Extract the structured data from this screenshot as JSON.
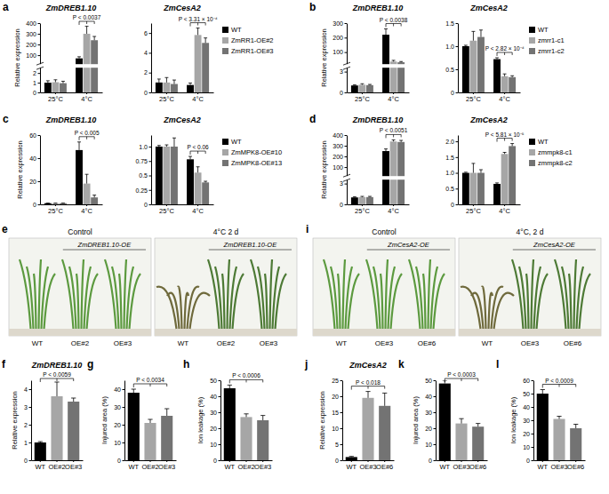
{
  "chart_data": [
    {
      "type": "bar",
      "panel": "a",
      "title": "ZmDREB1.10",
      "ylabel": "Relative expression",
      "categories": [
        "25°C",
        "4°C"
      ],
      "series": [
        {
          "name": "WT",
          "color": "#000000",
          "values": [
            1,
            70
          ],
          "errors": [
            0.2,
            15
          ]
        },
        {
          "name": "ZmRR1-OE#2",
          "color": "#a6a6a6",
          "values": [
            1.05,
            300
          ],
          "errors": [
            0.25,
            70
          ]
        },
        {
          "name": "ZmRR1-OE#3",
          "color": "#737373",
          "values": [
            0.95,
            240
          ],
          "errors": [
            0.2,
            35
          ]
        }
      ],
      "ylim": [
        0,
        400
      ],
      "ybreak": [
        2.5,
        20
      ],
      "yticks": [
        0,
        1,
        2,
        100,
        200,
        300,
        400
      ],
      "annotations": [
        {
          "text": "P < 0.0037"
        }
      ]
    },
    {
      "type": "bar",
      "title": "ZmCesA2",
      "categories": [
        "25°C",
        "4°C"
      ],
      "series": [
        {
          "name": "WT",
          "color": "#000000",
          "values": [
            1,
            0.75
          ],
          "errors": [
            0.35,
            0.2
          ]
        },
        {
          "name": "ZmRR1-OE#2",
          "color": "#a6a6a6",
          "values": [
            1,
            5.8
          ],
          "errors": [
            0.5,
            0.7
          ]
        },
        {
          "name": "ZmRR1-OE#3",
          "color": "#737373",
          "values": [
            0.85,
            5.0
          ],
          "errors": [
            0.4,
            0.5
          ]
        }
      ],
      "ylim": [
        0,
        7
      ],
      "yticks": [
        0,
        2,
        4,
        6
      ],
      "legend": "right",
      "annotations": [
        {
          "text": "P < 3.31 × 10⁻⁴"
        }
      ]
    },
    {
      "type": "bar",
      "panel": "b",
      "title": "ZmDREB1.10",
      "ylabel": "Relative expression",
      "categories": [
        "25°C",
        "4°C"
      ],
      "series": [
        {
          "name": "WT",
          "color": "#000000",
          "values": [
            1,
            220
          ],
          "errors": [
            0.1,
            40
          ]
        },
        {
          "name": "zmrr1-c1",
          "color": "#a6a6a6",
          "values": [
            1.1,
            35
          ],
          "errors": [
            0.15,
            8
          ]
        },
        {
          "name": "zmrr1-c2",
          "color": "#737373",
          "values": [
            1.05,
            30
          ],
          "errors": [
            0.1,
            5
          ]
        }
      ],
      "ylim": [
        0,
        300
      ],
      "ybreak": [
        3.5,
        20
      ],
      "yticks": [
        0,
        3,
        100,
        200,
        300
      ],
      "annotations": [
        {
          "text": "P < 0.0038"
        }
      ]
    },
    {
      "type": "bar",
      "title": "ZmCesA2",
      "categories": [
        "25°C",
        "4°C"
      ],
      "series": [
        {
          "name": "WT",
          "color": "#000000",
          "values": [
            1,
            0.72
          ],
          "errors": [
            0.02,
            0.03
          ]
        },
        {
          "name": "zmrr1-c1",
          "color": "#a6a6a6",
          "values": [
            1.12,
            0.35
          ],
          "errors": [
            0.2,
            0.05
          ]
        },
        {
          "name": "zmrr1-c2",
          "color": "#737373",
          "values": [
            1.2,
            0.33
          ],
          "errors": [
            0.15,
            0.03
          ]
        }
      ],
      "ylim": [
        0,
        1.5
      ],
      "yticks": [
        0,
        0.5,
        {
          "value": 1,
          "label": "1.0"
        },
        1.5
      ],
      "legend": "right",
      "annotations": [
        {
          "text": "P < 2.82 × 10⁻⁴"
        }
      ]
    },
    {
      "type": "bar",
      "panel": "c",
      "title": "ZmDREB1.10",
      "ylabel": "Relative expression",
      "categories": [
        "25°C",
        "4°C"
      ],
      "series": [
        {
          "name": "WT",
          "color": "#000000",
          "values": [
            1,
            47
          ],
          "errors": [
            0.1,
            7
          ]
        },
        {
          "name": "ZmMPK8-OE#10",
          "color": "#a6a6a6",
          "values": [
            1,
            18
          ],
          "errors": [
            0.1,
            8
          ]
        },
        {
          "name": "ZmMPK8-OE#13",
          "color": "#737373",
          "values": [
            1,
            6
          ],
          "errors": [
            0.1,
            2
          ]
        }
      ],
      "ylim": [
        0,
        60
      ],
      "yticks": [
        0,
        20,
        40,
        60
      ],
      "annotations": [
        {
          "text": "P < 0.005"
        }
      ]
    },
    {
      "type": "bar",
      "title": "ZmCesA2",
      "categories": [
        "25°C",
        "4°C"
      ],
      "series": [
        {
          "name": "WT",
          "color": "#000000",
          "values": [
            1,
            0.78
          ],
          "errors": [
            0.02,
            0.05
          ]
        },
        {
          "name": "ZmMPK8-OE#10",
          "color": "#a6a6a6",
          "values": [
            1,
            0.55
          ],
          "errors": [
            0.03,
            0.1
          ]
        },
        {
          "name": "ZmMPK8-OE#13",
          "color": "#737373",
          "values": [
            1,
            0.38
          ],
          "errors": [
            0.15,
            0.02
          ]
        }
      ],
      "ylim": [
        0,
        1.2
      ],
      "yticks": [
        0,
        0.25,
        0.5,
        0.75,
        {
          "value": 1,
          "label": "1.0"
        }
      ],
      "legend": "right",
      "annotations": [
        {
          "text": "P < 0.06"
        }
      ]
    },
    {
      "type": "bar",
      "panel": "d",
      "title": "ZmDREB1.10",
      "ylabel": "Relative expression",
      "categories": [
        "25°C",
        "4°C"
      ],
      "series": [
        {
          "name": "WT",
          "color": "#000000",
          "values": [
            1,
            250
          ],
          "errors": [
            0.1,
            20
          ]
        },
        {
          "name": "zmmpk8-c1",
          "color": "#a6a6a6",
          "values": [
            1.05,
            340
          ],
          "errors": [
            0.1,
            15
          ]
        },
        {
          "name": "zmmpk8-c2",
          "color": "#737373",
          "values": [
            1.05,
            335
          ],
          "errors": [
            0.1,
            15
          ]
        }
      ],
      "ylim": [
        0,
        400
      ],
      "ybreak": [
        3.5,
        20
      ],
      "yticks": [
        0,
        3,
        100,
        200,
        300,
        400
      ],
      "annotations": [
        {
          "text": "P < 0.0051"
        }
      ]
    },
    {
      "type": "bar",
      "title": "ZmCesA2",
      "categories": [
        "25°C",
        "4°C"
      ],
      "series": [
        {
          "name": "WT",
          "color": "#000000",
          "values": [
            1,
            0.65
          ],
          "errors": [
            0.02,
            0.03
          ]
        },
        {
          "name": "zmmpk8-c1",
          "color": "#a6a6a6",
          "values": [
            1,
            1.6
          ],
          "errors": [
            0.3,
            0.05
          ]
        },
        {
          "name": "zmmpk8-c2",
          "color": "#737373",
          "values": [
            1,
            1.85
          ],
          "errors": [
            0.1,
            0.08
          ]
        }
      ],
      "ylim": [
        0,
        2.2
      ],
      "yticks": [
        0,
        0.5,
        {
          "value": 1,
          "label": "1.0"
        },
        1.5,
        {
          "value": 2,
          "label": "2.0"
        }
      ],
      "legend": "right",
      "annotations": [
        {
          "text": "P < 5.81 × 10⁻⁵"
        }
      ]
    },
    {
      "type": "bar",
      "panel": "f",
      "title": "ZmDREB1.10",
      "ylabel": "Relative expression",
      "categories": [
        "WT",
        "OE#2",
        "OE#3"
      ],
      "values": [
        1,
        3.6,
        3.3
      ],
      "errors": [
        0.05,
        0.8,
        0.2
      ],
      "colors": [
        "#000000",
        "#a6a6a6",
        "#737373"
      ],
      "ylim": [
        0,
        4.5
      ],
      "yticks": [
        0,
        1,
        2,
        3,
        4
      ],
      "annotations": [
        {
          "text": "P < 0.0059"
        }
      ]
    },
    {
      "type": "bar",
      "panel": "g",
      "ylabel": "Injured area (%)",
      "categories": [
        "WT",
        "OE#2",
        "OE#3"
      ],
      "values": [
        38,
        21,
        25
      ],
      "errors": [
        2,
        2,
        4
      ],
      "colors": [
        "#000000",
        "#a6a6a6",
        "#737373"
      ],
      "ylim": [
        0,
        45
      ],
      "yticks": [
        0,
        10,
        20,
        30,
        40
      ],
      "annotations": [
        {
          "text": "P < 0.0034"
        }
      ]
    },
    {
      "type": "bar",
      "panel": "h",
      "ylabel": "Ion leakage (%)",
      "categories": [
        "WT",
        "OE#2",
        "OE#3"
      ],
      "values": [
        45,
        27,
        25
      ],
      "errors": [
        2,
        2,
        3
      ],
      "colors": [
        "#000000",
        "#a6a6a6",
        "#737373"
      ],
      "ylim": [
        0,
        50
      ],
      "yticks": [
        0,
        10,
        20,
        30,
        40,
        50
      ],
      "annotations": [
        {
          "text": "P < 0.0006"
        }
      ]
    },
    {
      "type": "bar",
      "panel": "j",
      "title": "ZmCesA2",
      "ylabel": "Relative expression",
      "categories": [
        "WT",
        "OE#3",
        "OE#6"
      ],
      "values": [
        1,
        19.5,
        17
      ],
      "errors": [
        0.2,
        2,
        4
      ],
      "colors": [
        "#000000",
        "#a6a6a6",
        "#737373"
      ],
      "ylim": [
        0,
        25
      ],
      "yticks": [
        0,
        5,
        10,
        15,
        20,
        25
      ],
      "annotations": [
        {
          "text": "P < 0.018"
        }
      ]
    },
    {
      "type": "bar",
      "panel": "k",
      "ylabel": "Injured area (%)",
      "categories": [
        "WT",
        "OE#3",
        "OE#6"
      ],
      "values": [
        48,
        23,
        21
      ],
      "errors": [
        2,
        3,
        2
      ],
      "colors": [
        "#000000",
        "#a6a6a6",
        "#737373"
      ],
      "ylim": [
        0,
        50
      ],
      "yticks": [
        0,
        10,
        20,
        30,
        40,
        50
      ],
      "annotations": [
        {
          "text": "P < 0.0003"
        }
      ]
    },
    {
      "type": "bar",
      "panel": "l",
      "ylabel": "Ion leakage (%)",
      "categories": [
        "WT",
        "OE#3",
        "OE#6"
      ],
      "values": [
        50,
        31,
        24
      ],
      "errors": [
        3,
        2,
        3
      ],
      "colors": [
        "#000000",
        "#a6a6a6",
        "#737373"
      ],
      "ylim": [
        0,
        60
      ],
      "yticks": [
        0,
        10,
        20,
        30,
        40,
        50,
        60
      ],
      "annotations": [
        {
          "text": "P < 0.0009"
        }
      ]
    }
  ],
  "photos": [
    {
      "panel": "e",
      "frames": [
        {
          "caption": "Control",
          "group_label": "ZmDREB1.10-OE",
          "labels": [
            "WT",
            "OE#2",
            "OE#3"
          ]
        },
        {
          "caption": "4°C 2 d",
          "group_label": "ZmDREB1.10-OE",
          "labels": [
            "WT",
            "OE#2",
            "OE#3"
          ]
        }
      ]
    },
    {
      "panel": "i",
      "frames": [
        {
          "caption": "Control",
          "group_label": "ZmCesA2-OE",
          "labels": [
            "WT",
            "OE#3",
            "OE#6"
          ]
        },
        {
          "caption": "4°C, 2 d",
          "group_label": "ZmCesA2-OE",
          "labels": [
            "WT",
            "OE#3",
            "OE#6"
          ]
        }
      ]
    }
  ]
}
